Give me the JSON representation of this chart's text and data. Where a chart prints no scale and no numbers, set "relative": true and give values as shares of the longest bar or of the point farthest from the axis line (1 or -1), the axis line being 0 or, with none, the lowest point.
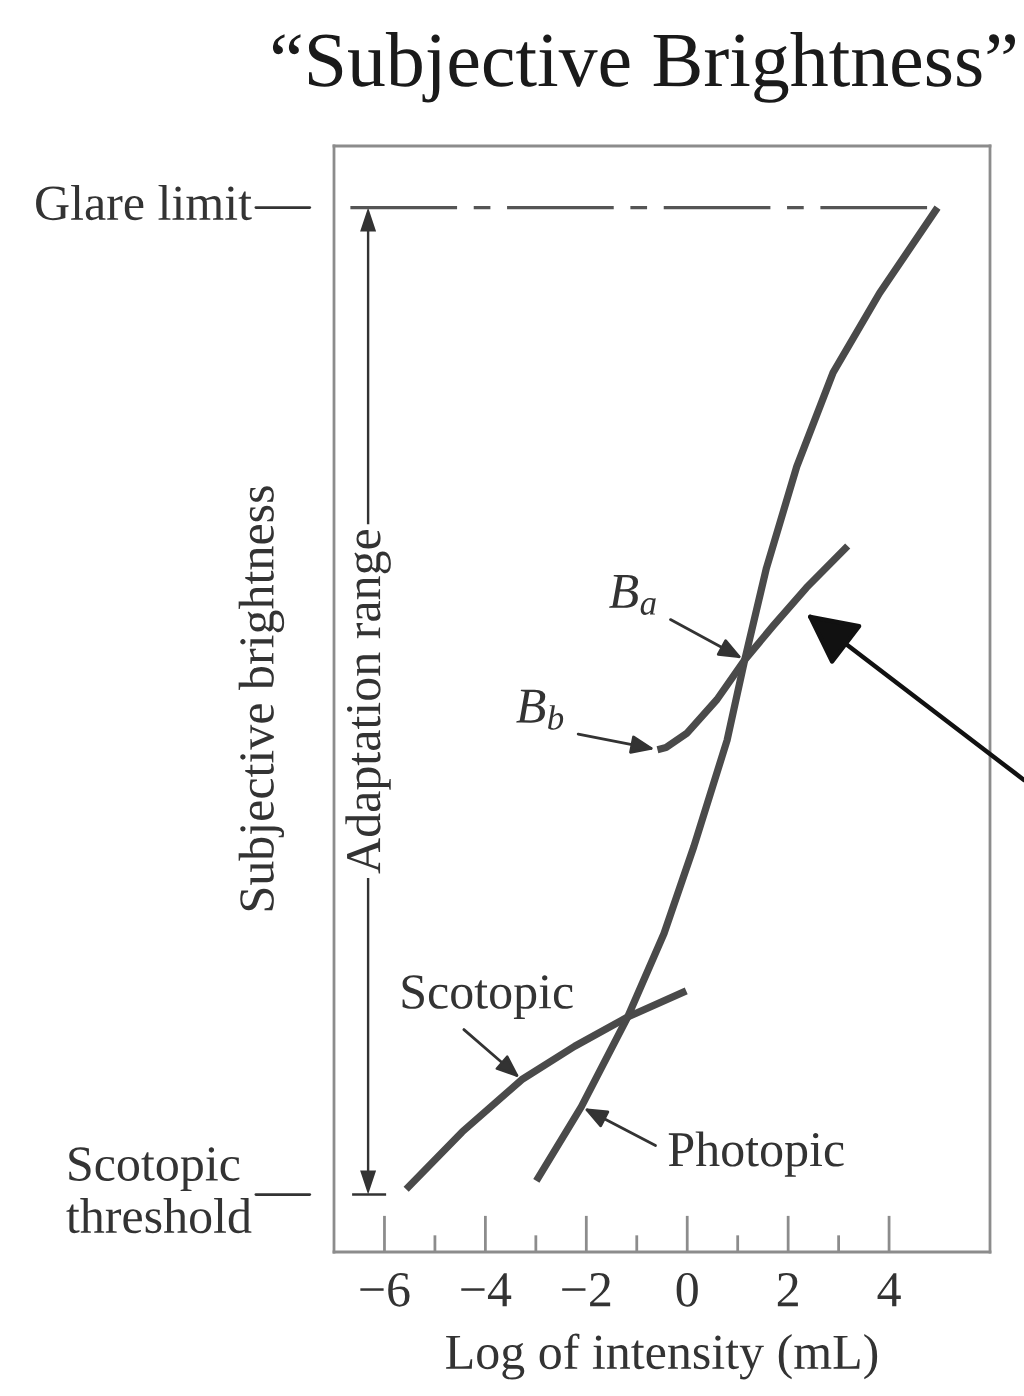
{
  "chart_data": {
    "type": "line",
    "title": "“Subjective Brightness”",
    "xlabel": "Log of intensity (mL)",
    "ylabel": "Subjective brightness",
    "relative": true,
    "xlim": [
      -7,
      6
    ],
    "xticks": [
      {
        "value": -6,
        "label": "−6"
      },
      {
        "value": -5,
        "label": null
      },
      {
        "value": -4,
        "label": "−4"
      },
      {
        "value": -3,
        "label": null
      },
      {
        "value": -2,
        "label": "−2"
      },
      {
        "value": -1,
        "label": null
      },
      0,
      {
        "value": 1,
        "label": null
      },
      2,
      {
        "value": 3,
        "label": null
      },
      4
    ],
    "tick_labels": "x",
    "series": [
      {
        "color": "#4a4a4a",
        "x": [
          -2.99,
          -2.1,
          -1.18,
          -0.46,
          0.13,
          0.79,
          1.14,
          1.57,
          2.17,
          2.89,
          3.81,
          4.96
        ],
        "values": [
          0.068,
          0.139,
          0.225,
          0.305,
          0.388,
          0.49,
          0.567,
          0.655,
          0.752,
          0.842,
          0.918,
          1
        ]
      },
      {
        "color": "#4a4a4a",
        "x": [
          -5.57,
          -4.46,
          -3.28,
          -2.23,
          -1.18,
          -0.02
        ],
        "values": [
          0.06,
          0.115,
          0.165,
          0.197,
          0.225,
          0.25
        ]
      },
      {
        "color": "#4a4a4a",
        "x": [
          -0.59,
          -0.42,
          0,
          0.59,
          1.14,
          1.71,
          2.36,
          3.18
        ],
        "values": [
          0.481,
          0.483,
          0.497,
          0.529,
          0.567,
          0.6,
          0.636,
          0.676
        ]
      }
    ],
    "ref_lines": [
      {
        "axis": "y",
        "value": 1,
        "label": "Glare limit",
        "line_style": "dashed"
      },
      {
        "axis": "y",
        "value": 0.055,
        "label": "Scotopic\nthreshold"
      }
    ],
    "annotations": [
      {
        "text": "Scotopic",
        "x": -3.28,
        "y": 0.165
      },
      {
        "text": "Photopic",
        "x": -2.1,
        "y": 0.139
      },
      {
        "text": "B$_{a}$",
        "x": 1.14,
        "y": 0.567
      },
      {
        "text": "B$_{b}$",
        "x": -0.59,
        "y": 0.481
      },
      "Adaptation range"
    ]
  }
}
